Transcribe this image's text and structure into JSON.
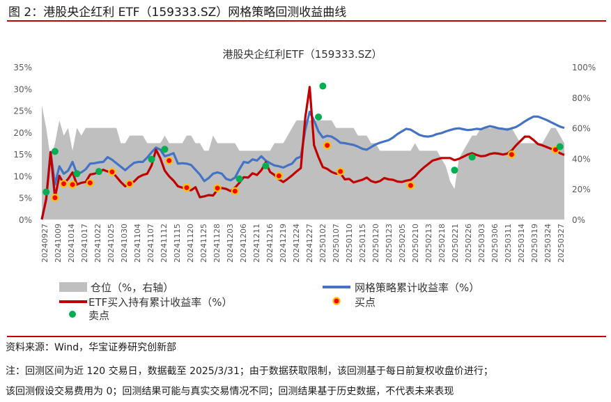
{
  "figure_title": "图 2：港股央企红利 ETF（159333.SZ）网格策略回测收益曲线",
  "source": "资料来源：Wind，华宝证券研究创新部",
  "note_line1": "注：回测区间为近 120 交易日，数据截至 2025/3/31；由于数据获取限制，该回测基于每日前复权收盘价进行；",
  "note_line2": "该回测假设交易费用为 0；回测结果可能与真实交易情况不同；回测结果基于历史数据，不代表未来表现",
  "colors": {
    "rule": "#c00000",
    "position_area": "#bfbfbf",
    "grid_line": "#4472c4",
    "etf_line": "#c00000",
    "buy_fill": "#ff0000",
    "buy_ring": "#ffc000",
    "sell": "#00b050"
  },
  "chart_data": {
    "type": "line",
    "title": "港股央企红利ETF（159333.SZ）",
    "x_tick_labels": [
      "20240927",
      "20241009",
      "20241014",
      "20241017",
      "20241022",
      "20241025",
      "20241030",
      "20241104",
      "20241107",
      "20241112",
      "20241115",
      "20241120",
      "20241125",
      "20241128",
      "20241203",
      "20241206",
      "20241211",
      "20241216",
      "20241219",
      "20241224",
      "20241227",
      "20250102",
      "20250107",
      "20250110",
      "20250115",
      "20250120",
      "20250123",
      "20250205",
      "20250210",
      "20250213",
      "20250218",
      "20250221",
      "20250226",
      "20250303",
      "20250306",
      "20250311",
      "20250314",
      "20250319",
      "20250324",
      "20250327"
    ],
    "left_axis": {
      "ticks": [
        "0%",
        "5%",
        "10%",
        "15%",
        "20%",
        "25%",
        "30%",
        "35%"
      ],
      "range": [
        0,
        35
      ],
      "unit": "%"
    },
    "right_axis": {
      "ticks": [
        "0%",
        "20%",
        "40%",
        "60%",
        "80%",
        "100%"
      ],
      "range": [
        0,
        100
      ],
      "unit": "%"
    },
    "x_count": 120,
    "series": [
      {
        "name": "仓位（%，右轴）",
        "kind": "area",
        "axis": "right",
        "values": [
          75,
          60,
          40,
          50,
          65,
          55,
          60,
          45,
          60,
          55,
          60,
          60,
          60,
          60,
          60,
          60,
          60,
          60,
          50,
          50,
          55,
          55,
          55,
          55,
          50,
          50,
          50,
          50,
          55,
          50,
          50,
          50,
          50,
          55,
          55,
          50,
          50,
          45,
          45,
          55,
          50,
          50,
          50,
          50,
          50,
          45,
          45,
          45,
          45,
          45,
          45,
          45,
          45,
          50,
          50,
          50,
          55,
          60,
          65,
          65,
          65,
          65,
          65,
          65,
          65,
          65,
          65,
          60,
          60,
          60,
          60,
          60,
          55,
          55,
          55,
          50,
          50,
          45,
          45,
          45,
          45,
          45,
          45,
          45,
          45,
          50,
          45,
          45,
          45,
          45,
          45,
          40,
          35,
          25,
          20,
          40,
          45,
          50,
          55,
          55,
          60,
          60,
          60,
          60,
          60,
          60,
          60,
          60,
          55,
          50,
          50,
          50,
          50,
          50,
          50,
          55,
          60,
          60,
          55,
          50
        ]
      },
      {
        "name": "网格策略累计收益率（%）",
        "kind": "line",
        "axis": "left",
        "values": [
          0.0,
          4.8,
          15.5,
          8.0,
          12.2,
          10.5,
          11.2,
          13.2,
          10.5,
          10.8,
          11.5,
          12.8,
          12.9,
          13.1,
          13.2,
          14.3,
          13.7,
          12.9,
          12.1,
          11.3,
          12.2,
          13.0,
          13.2,
          13.2,
          14.2,
          15.4,
          16.5,
          16.0,
          14.5,
          14.8,
          15.2,
          12.8,
          12.9,
          12.8,
          12.5,
          11.4,
          10.3,
          8.8,
          9.5,
          10.5,
          10.8,
          10.5,
          9.3,
          9.0,
          9.6,
          11.5,
          13.2,
          13.0,
          13.8,
          13.5,
          14.5,
          13.5,
          12.9,
          12.4,
          12.2,
          11.9,
          12.4,
          12.8,
          14.0,
          14.4,
          20.6,
          24.7,
          22.7,
          20.2,
          18.8,
          19.2,
          19.0,
          18.4,
          17.6,
          17.5,
          17.3,
          17.1,
          16.7,
          16.2,
          16.0,
          16.6,
          17.2,
          17.6,
          17.9,
          18.2,
          18.8,
          19.6,
          20.2,
          20.8,
          20.6,
          20.0,
          19.4,
          19.1,
          19.0,
          19.2,
          19.6,
          19.8,
          20.2,
          20.5,
          20.8,
          20.9,
          20.7,
          20.5,
          20.6,
          20.8,
          20.7,
          21.1,
          21.4,
          21.2,
          20.9,
          20.8,
          20.6,
          20.9,
          21.2,
          21.8,
          22.5,
          23.1,
          23.6,
          23.6,
          23.2,
          22.8,
          22.3,
          21.8,
          21.3,
          21.0
        ]
      },
      {
        "name": "ETF买入持有累计收益率（%）",
        "kind": "line",
        "axis": "left",
        "values": [
          0.0,
          4.6,
          15.4,
          5.0,
          10.0,
          8.2,
          9.3,
          10.8,
          8.0,
          8.4,
          8.6,
          10.3,
          10.5,
          10.9,
          11.4,
          11.0,
          10.9,
          9.8,
          8.6,
          7.6,
          8.2,
          8.7,
          9.7,
          10.2,
          10.5,
          12.4,
          16.0,
          14.0,
          11.2,
          9.9,
          8.9,
          7.6,
          7.3,
          6.9,
          6.7,
          7.4,
          5.1,
          5.3,
          5.6,
          5.5,
          6.8,
          7.2,
          7.0,
          6.5,
          7.3,
          8.4,
          9.7,
          9.6,
          10.6,
          10.2,
          11.3,
          13.1,
          10.9,
          10.2,
          9.2,
          8.6,
          9.3,
          10.1,
          11.0,
          11.8,
          23.4,
          30.4,
          17.0,
          14.3,
          12.0,
          11.6,
          10.9,
          10.5,
          10.6,
          9.2,
          9.3,
          8.5,
          8.8,
          9.1,
          9.6,
          8.8,
          8.5,
          8.8,
          9.5,
          9.2,
          9.1,
          8.7,
          8.6,
          8.9,
          9.1,
          9.9,
          11.0,
          11.9,
          12.7,
          13.5,
          13.8,
          14.1,
          14.1,
          14.1,
          13.6,
          13.9,
          14.4,
          14.9,
          15.2,
          14.8,
          14.5,
          14.6,
          15.0,
          15.2,
          15.1,
          14.9,
          15.1,
          15.8,
          17.0,
          18.0,
          19.0,
          19.0,
          18.2,
          17.3,
          17.0,
          16.6,
          16.2,
          16.0,
          15.2,
          14.8
        ]
      }
    ],
    "buy_points": [
      {
        "x": 3,
        "y": 5.0
      },
      {
        "x": 5,
        "y": 8.2
      },
      {
        "x": 7,
        "y": 8.0
      },
      {
        "x": 11,
        "y": 8.4
      },
      {
        "x": 16,
        "y": 10.9
      },
      {
        "x": 20,
        "y": 8.2
      },
      {
        "x": 29,
        "y": 13.5
      },
      {
        "x": 33,
        "y": 7.3
      },
      {
        "x": 40,
        "y": 7.2
      },
      {
        "x": 44,
        "y": 6.5
      },
      {
        "x": 54,
        "y": 10.0
      },
      {
        "x": 65,
        "y": 17.0
      },
      {
        "x": 68,
        "y": 11.0
      },
      {
        "x": 84,
        "y": 7.8
      },
      {
        "x": 107,
        "y": 14.9
      },
      {
        "x": 117,
        "y": 16.0
      }
    ],
    "sell_points": [
      {
        "x": 1,
        "y": 6.3
      },
      {
        "x": 3,
        "y": 15.6
      },
      {
        "x": 8,
        "y": 10.5
      },
      {
        "x": 13,
        "y": 11.0
      },
      {
        "x": 25,
        "y": 13.8
      },
      {
        "x": 28,
        "y": 16.1
      },
      {
        "x": 45,
        "y": 9.3
      },
      {
        "x": 51,
        "y": 12.3
      },
      {
        "x": 63,
        "y": 23.5
      },
      {
        "x": 64,
        "y": 30.6
      },
      {
        "x": 94,
        "y": 11.3
      },
      {
        "x": 98,
        "y": 14.3
      },
      {
        "x": 118,
        "y": 16.7
      }
    ],
    "legend": [
      {
        "label": "仓位（%，右轴）",
        "kind": "area"
      },
      {
        "label": "网格策略累计收益率（%）",
        "kind": "line-blue"
      },
      {
        "label": "ETF买入持有累计收益率（%）",
        "kind": "line-red"
      },
      {
        "label": "买点",
        "kind": "buy"
      },
      {
        "label": "卖点",
        "kind": "sell"
      }
    ],
    "legend_placement": "bottom",
    "grid": false
  }
}
